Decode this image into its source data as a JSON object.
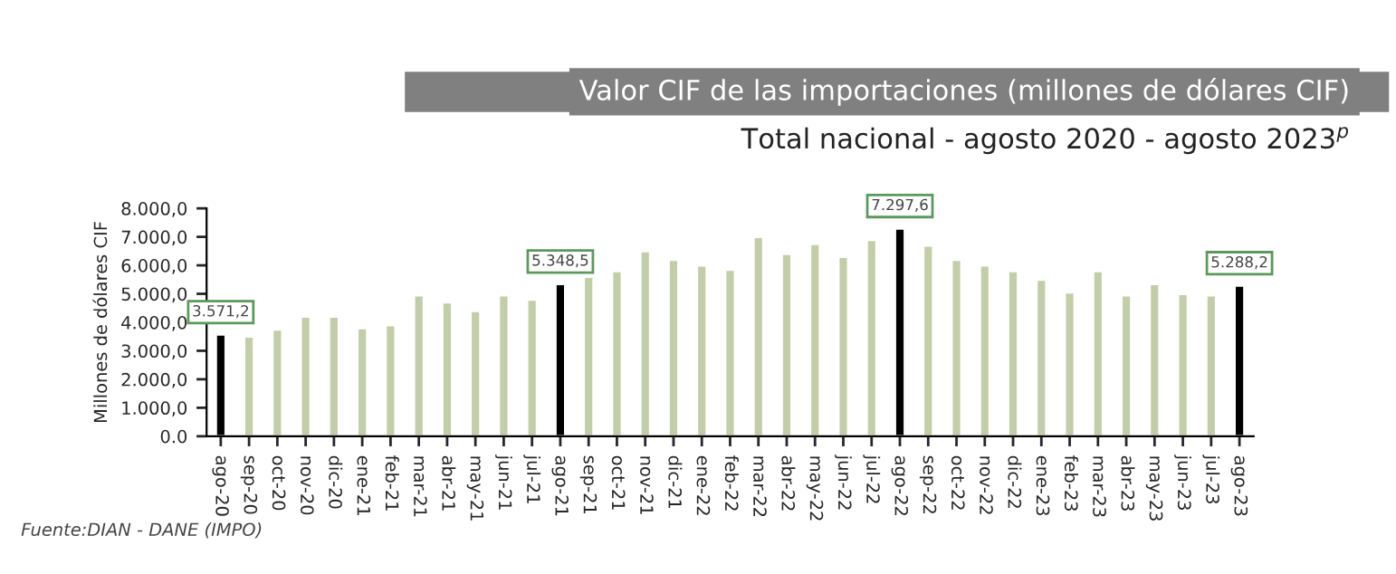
{
  "chart_data": {
    "type": "bar",
    "title": "Valor CIF de las importaciones (millones de dólares CIF)",
    "subtitle": "Total nacional - agosto 2020 - agosto 2023$^{p}$",
    "ylabel": "Millones de dólares CIF",
    "categories": [
      "ago-20",
      "sep-20",
      "oct-20",
      "nov-20",
      "dic-20",
      "ene-21",
      "feb-21",
      "mar-21",
      "abr-21",
      "may-21",
      "jun-21",
      "jul-21",
      "ago-21",
      "sep-21",
      "oct-21",
      "nov-21",
      "dic-21",
      "ene-22",
      "feb-22",
      "mar-22",
      "abr-22",
      "may-22",
      "jun-22",
      "jul-22",
      "ago-22",
      "sep-22",
      "oct-22",
      "nov-22",
      "dic-22",
      "ene-23",
      "feb-23",
      "mar-23",
      "abr-23",
      "may-23",
      "jun-23",
      "jul-23",
      "ago-23"
    ],
    "values": [
      3571.2,
      3500,
      3750,
      4200,
      4200,
      3800,
      3900,
      4950,
      4700,
      4400,
      4950,
      4800,
      5348.5,
      5600,
      5800,
      6500,
      6200,
      6000,
      5850,
      7000,
      6400,
      6750,
      6300,
      6900,
      7297.6,
      6700,
      6200,
      6000,
      5800,
      5500,
      5050,
      5800,
      4950,
      5350,
      5000,
      4950,
      5288.2
    ],
    "colors": [
      "#000000",
      "#c5d5a0",
      "#c5d5a0",
      "#c5d5a0",
      "#c5d5a0",
      "#c5d5a0",
      "#c5d5a0",
      "#c5d5a0",
      "#c5d5a0",
      "#c5d5a0",
      "#c5d5a0",
      "#c5d5a0",
      "#000000",
      "#c5d5a0",
      "#c5d5a0",
      "#c5d5a0",
      "#c5d5a0",
      "#c5d5a0",
      "#c5d5a0",
      "#c5d5a0",
      "#c5d5a0",
      "#c5d5a0",
      "#c5d5a0",
      "#c5d5a0",
      "#000000",
      "#c5d5a0",
      "#c5d5a0",
      "#c5d5a0",
      "#c5d5a0",
      "#c5d5a0",
      "#c5d5a0",
      "#c5d5a0",
      "#c5d5a0",
      "#c5d5a0",
      "#c5d5a0",
      "#c5d5a0",
      "#000000"
    ],
    "value_labels": [
      "3.571,2",
      null,
      null,
      null,
      null,
      null,
      null,
      null,
      null,
      null,
      null,
      null,
      "5.348,5",
      null,
      null,
      null,
      null,
      null,
      null,
      null,
      null,
      null,
      null,
      null,
      "7.297,6",
      null,
      null,
      null,
      null,
      null,
      null,
      null,
      null,
      null,
      null,
      null,
      "5.288,2"
    ],
    "ylim": [
      0,
      8000
    ],
    "yticks": [
      {
        "value": 0,
        "label": "0.0"
      },
      {
        "value": 1000,
        "label": "1.000,0"
      },
      {
        "value": 2000,
        "label": "2.000,0"
      },
      {
        "value": 3000,
        "label": "3.000,0"
      },
      {
        "value": 4000,
        "label": "4.000,0"
      },
      {
        "value": 5000,
        "label": "5.000,0"
      },
      {
        "value": 6000,
        "label": "6.000,0"
      },
      {
        "value": 7000,
        "label": "7.000,0"
      },
      {
        "value": 8000,
        "label": "8.000,0"
      }
    ],
    "grid": false,
    "legend": false,
    "annotations": [
      "Fuente:DIAN - DANE (IMPO)"
    ]
  }
}
